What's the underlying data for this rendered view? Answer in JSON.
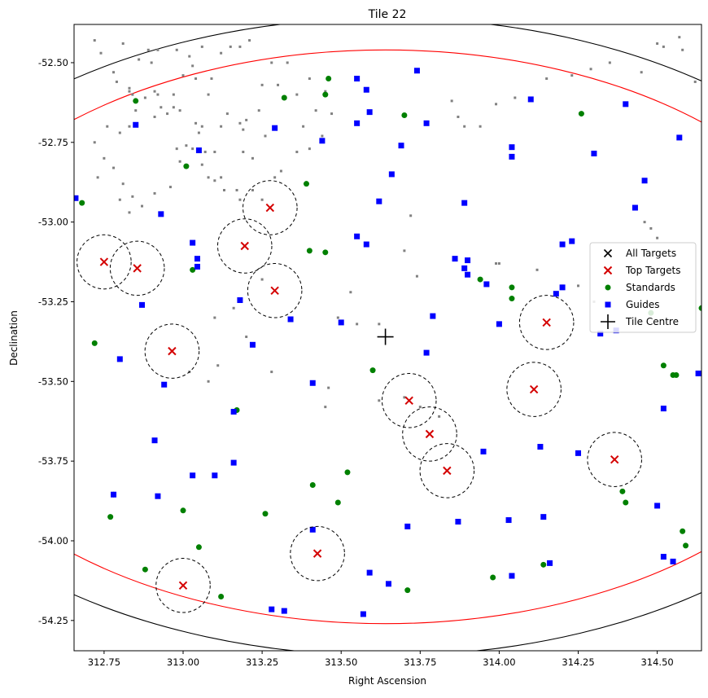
{
  "chart_data": {
    "type": "scatter",
    "title": "Tile 22",
    "xlabel": "Right Ascension",
    "ylabel": "Declination",
    "xlim": [
      312.655,
      314.64
    ],
    "ylim": [
      -54.345,
      -52.38
    ],
    "y_inverted": true,
    "x_ticks": [
      "312.75",
      "313.00",
      "313.25",
      "313.50",
      "313.75",
      "314.00",
      "314.25",
      "314.50"
    ],
    "y_ticks": [
      "-52.50",
      "-52.75",
      "-53.00",
      "-53.25",
      "-53.50",
      "-53.75",
      "-54.00",
      "-54.25"
    ],
    "legend_position": "center-right",
    "legend": [
      {
        "label": "All Targets",
        "marker": "x",
        "color": "#000000"
      },
      {
        "label": "Top Targets",
        "marker": "x",
        "color": "#d40000"
      },
      {
        "label": "Standards",
        "marker": "circle",
        "color": "#008000"
      },
      {
        "label": "Guides",
        "marker": "square",
        "color": "#0000ff"
      },
      {
        "label": "Tile Centre",
        "marker": "plus",
        "color": "#000000"
      }
    ],
    "tile_centre": {
      "ra": 313.64,
      "dec": -53.36
    },
    "field_circles": [
      {
        "radius_dec": 1.0,
        "color": "#000000"
      },
      {
        "radius_dec": 0.9,
        "color": "#ff0000"
      }
    ],
    "top_target_circle_radius_dec": 0.085,
    "series": [
      {
        "name": "Top Targets",
        "points": [
          [
            312.75,
            -53.125
          ],
          [
            312.855,
            -53.145
          ],
          [
            312.965,
            -53.405
          ],
          [
            313.275,
            -52.955
          ],
          [
            313.195,
            -53.075
          ],
          [
            313.29,
            -53.215
          ],
          [
            313.715,
            -53.56
          ],
          [
            313.78,
            -53.665
          ],
          [
            313.835,
            -53.78
          ],
          [
            314.11,
            -53.525
          ],
          [
            314.15,
            -53.315
          ],
          [
            314.365,
            -53.745
          ],
          [
            313.425,
            -54.04
          ],
          [
            313.0,
            -54.14
          ]
        ]
      },
      {
        "name": "Standards",
        "points": [
          [
            312.68,
            -52.94
          ],
          [
            312.72,
            -53.38
          ],
          [
            312.85,
            -52.62
          ],
          [
            313.01,
            -52.825
          ],
          [
            313.03,
            -53.15
          ],
          [
            313.32,
            -52.61
          ],
          [
            313.39,
            -52.88
          ],
          [
            313.4,
            -53.09
          ],
          [
            313.45,
            -53.095
          ],
          [
            313.45,
            -52.6
          ],
          [
            313.46,
            -52.55
          ],
          [
            313.6,
            -53.465
          ],
          [
            313.7,
            -52.665
          ],
          [
            313.94,
            -53.18
          ],
          [
            314.04,
            -53.205
          ],
          [
            314.04,
            -53.24
          ],
          [
            314.26,
            -52.66
          ],
          [
            314.52,
            -53.45
          ],
          [
            314.55,
            -53.48
          ],
          [
            314.56,
            -53.48
          ],
          [
            314.64,
            -53.27
          ],
          [
            314.48,
            -53.285
          ],
          [
            313.17,
            -53.59
          ],
          [
            312.78,
            -53.855
          ],
          [
            312.77,
            -53.925
          ],
          [
            312.88,
            -54.09
          ],
          [
            313.0,
            -53.905
          ],
          [
            313.05,
            -54.02
          ],
          [
            313.12,
            -54.175
          ],
          [
            313.26,
            -53.915
          ],
          [
            313.41,
            -53.825
          ],
          [
            313.49,
            -53.88
          ],
          [
            313.52,
            -53.785
          ],
          [
            313.71,
            -54.155
          ],
          [
            313.98,
            -54.115
          ],
          [
            314.14,
            -54.075
          ],
          [
            314.39,
            -53.845
          ],
          [
            314.4,
            -53.88
          ],
          [
            314.58,
            -53.97
          ],
          [
            314.59,
            -54.015
          ]
        ]
      },
      {
        "name": "Guides",
        "points": [
          [
            312.66,
            -52.925
          ],
          [
            312.85,
            -52.695
          ],
          [
            312.93,
            -52.975
          ],
          [
            313.05,
            -52.775
          ],
          [
            313.03,
            -53.065
          ],
          [
            313.045,
            -53.115
          ],
          [
            313.045,
            -53.14
          ],
          [
            312.87,
            -53.26
          ],
          [
            312.8,
            -53.43
          ],
          [
            312.94,
            -53.51
          ],
          [
            313.18,
            -53.245
          ],
          [
            313.22,
            -53.385
          ],
          [
            313.29,
            -52.705
          ],
          [
            313.34,
            -53.305
          ],
          [
            313.44,
            -52.745
          ],
          [
            313.5,
            -53.315
          ],
          [
            313.55,
            -52.55
          ],
          [
            313.58,
            -52.585
          ],
          [
            313.59,
            -52.655
          ],
          [
            313.55,
            -52.69
          ],
          [
            313.55,
            -53.045
          ],
          [
            313.58,
            -53.07
          ],
          [
            313.62,
            -52.935
          ],
          [
            313.66,
            -52.85
          ],
          [
            313.69,
            -52.76
          ],
          [
            313.74,
            -52.525
          ],
          [
            313.77,
            -52.69
          ],
          [
            313.89,
            -52.94
          ],
          [
            313.86,
            -53.115
          ],
          [
            313.89,
            -53.145
          ],
          [
            313.9,
            -53.12
          ],
          [
            313.9,
            -53.165
          ],
          [
            313.96,
            -53.195
          ],
          [
            314.0,
            -53.32
          ],
          [
            313.79,
            -53.295
          ],
          [
            313.77,
            -53.41
          ],
          [
            314.04,
            -52.765
          ],
          [
            314.04,
            -52.795
          ],
          [
            314.1,
            -52.615
          ],
          [
            314.18,
            -53.225
          ],
          [
            314.2,
            -53.205
          ],
          [
            314.2,
            -53.07
          ],
          [
            314.23,
            -53.06
          ],
          [
            314.3,
            -52.785
          ],
          [
            314.32,
            -53.35
          ],
          [
            314.37,
            -53.34
          ],
          [
            314.4,
            -52.63
          ],
          [
            314.43,
            -52.955
          ],
          [
            314.46,
            -52.87
          ],
          [
            314.57,
            -52.735
          ],
          [
            314.63,
            -53.475
          ],
          [
            314.52,
            -53.585
          ],
          [
            313.41,
            -53.505
          ],
          [
            313.16,
            -53.595
          ],
          [
            313.16,
            -53.755
          ],
          [
            312.91,
            -53.685
          ],
          [
            312.78,
            -53.855
          ],
          [
            312.92,
            -53.86
          ],
          [
            313.03,
            -53.795
          ],
          [
            313.1,
            -53.795
          ],
          [
            313.41,
            -53.965
          ],
          [
            313.28,
            -54.215
          ],
          [
            313.32,
            -54.22
          ],
          [
            313.59,
            -54.1
          ],
          [
            313.65,
            -54.135
          ],
          [
            313.57,
            -54.23
          ],
          [
            313.71,
            -53.955
          ],
          [
            313.95,
            -53.72
          ],
          [
            313.87,
            -53.94
          ],
          [
            314.03,
            -53.935
          ],
          [
            314.04,
            -54.11
          ],
          [
            314.13,
            -53.705
          ],
          [
            314.14,
            -53.925
          ],
          [
            314.16,
            -54.07
          ],
          [
            314.25,
            -53.725
          ],
          [
            314.5,
            -53.89
          ],
          [
            314.52,
            -54.05
          ],
          [
            314.55,
            -54.065
          ]
        ]
      },
      {
        "name": "All Targets",
        "points": [
          [
            312.72,
            -52.43
          ],
          [
            312.78,
            -52.53
          ],
          [
            312.79,
            -52.56
          ],
          [
            312.83,
            -52.58
          ],
          [
            312.83,
            -52.59
          ],
          [
            312.84,
            -52.6
          ],
          [
            312.88,
            -52.61
          ],
          [
            312.91,
            -52.59
          ],
          [
            312.92,
            -52.6
          ],
          [
            312.93,
            -52.64
          ],
          [
            312.95,
            -52.66
          ],
          [
            312.91,
            -52.67
          ],
          [
            312.97,
            -52.6
          ],
          [
            312.97,
            -52.64
          ],
          [
            312.99,
            -52.65
          ],
          [
            312.85,
            -52.65
          ],
          [
            312.83,
            -52.7
          ],
          [
            312.76,
            -52.7
          ],
          [
            312.8,
            -52.72
          ],
          [
            312.72,
            -52.75
          ],
          [
            312.75,
            -52.8
          ],
          [
            312.73,
            -52.86
          ],
          [
            312.78,
            -52.83
          ],
          [
            312.81,
            -52.88
          ],
          [
            312.84,
            -52.92
          ],
          [
            312.8,
            -52.93
          ],
          [
            312.83,
            -52.97
          ],
          [
            312.87,
            -52.95
          ],
          [
            312.91,
            -52.91
          ],
          [
            312.96,
            -52.89
          ],
          [
            312.99,
            -52.81
          ],
          [
            312.98,
            -52.77
          ],
          [
            313.01,
            -52.76
          ],
          [
            313.03,
            -52.77
          ],
          [
            313.07,
            -52.78
          ],
          [
            313.1,
            -52.78
          ],
          [
            313.06,
            -52.82
          ],
          [
            313.08,
            -52.86
          ],
          [
            313.1,
            -52.87
          ],
          [
            313.12,
            -52.86
          ],
          [
            313.13,
            -52.9
          ],
          [
            313.17,
            -52.9
          ],
          [
            313.22,
            -52.9
          ],
          [
            313.18,
            -52.93
          ],
          [
            313.25,
            -52.93
          ],
          [
            313.29,
            -52.86
          ],
          [
            313.31,
            -52.84
          ],
          [
            313.22,
            -52.8
          ],
          [
            313.19,
            -52.78
          ],
          [
            313.12,
            -52.7
          ],
          [
            313.14,
            -52.66
          ],
          [
            313.18,
            -52.69
          ],
          [
            313.2,
            -52.68
          ],
          [
            313.24,
            -52.65
          ],
          [
            313.25,
            -52.57
          ],
          [
            313.28,
            -52.5
          ],
          [
            313.3,
            -52.57
          ],
          [
            313.33,
            -52.5
          ],
          [
            313.36,
            -52.6
          ],
          [
            313.4,
            -52.55
          ],
          [
            313.42,
            -52.65
          ],
          [
            313.45,
            -52.59
          ],
          [
            313.38,
            -52.7
          ],
          [
            313.36,
            -52.78
          ],
          [
            313.4,
            -52.77
          ],
          [
            313.44,
            -52.73
          ],
          [
            313.47,
            -52.66
          ],
          [
            313.26,
            -52.73
          ],
          [
            313.19,
            -52.71
          ],
          [
            313.06,
            -52.7
          ],
          [
            313.05,
            -52.72
          ],
          [
            313.04,
            -52.69
          ],
          [
            313.08,
            -52.6
          ],
          [
            313.09,
            -52.55
          ],
          [
            313.04,
            -52.55
          ],
          [
            313.0,
            -52.54
          ],
          [
            313.03,
            -52.51
          ],
          [
            313.12,
            -52.47
          ],
          [
            313.06,
            -52.45
          ],
          [
            313.02,
            -52.48
          ],
          [
            313.15,
            -52.45
          ],
          [
            313.18,
            -52.45
          ],
          [
            313.21,
            -52.43
          ],
          [
            312.98,
            -52.46
          ],
          [
            312.92,
            -52.46
          ],
          [
            312.89,
            -52.46
          ],
          [
            312.86,
            -52.49
          ],
          [
            312.9,
            -52.5
          ],
          [
            312.81,
            -52.44
          ],
          [
            312.74,
            -52.47
          ],
          [
            313.72,
            -52.98
          ],
          [
            313.7,
            -53.09
          ],
          [
            313.74,
            -53.17
          ],
          [
            313.62,
            -53.32
          ],
          [
            313.55,
            -53.32
          ],
          [
            313.53,
            -53.22
          ],
          [
            313.49,
            -53.3
          ],
          [
            313.85,
            -52.62
          ],
          [
            313.87,
            -52.67
          ],
          [
            313.89,
            -52.7
          ],
          [
            313.94,
            -52.7
          ],
          [
            313.99,
            -52.63
          ],
          [
            314.05,
            -52.61
          ],
          [
            314.15,
            -52.55
          ],
          [
            314.23,
            -52.54
          ],
          [
            314.29,
            -52.52
          ],
          [
            314.35,
            -52.5
          ],
          [
            314.45,
            -52.53
          ],
          [
            314.5,
            -52.44
          ],
          [
            314.52,
            -52.45
          ],
          [
            314.57,
            -52.42
          ],
          [
            314.58,
            -52.46
          ],
          [
            314.62,
            -52.56
          ],
          [
            313.99,
            -53.13
          ],
          [
            314.0,
            -53.13
          ],
          [
            314.12,
            -53.15
          ],
          [
            314.2,
            -53.2
          ],
          [
            314.25,
            -53.2
          ],
          [
            314.3,
            -53.25
          ],
          [
            314.46,
            -53.0
          ],
          [
            314.48,
            -53.02
          ],
          [
            314.5,
            -53.05
          ],
          [
            313.11,
            -53.45
          ],
          [
            313.08,
            -53.5
          ],
          [
            313.02,
            -53.47
          ],
          [
            313.25,
            -53.18
          ],
          [
            313.28,
            -53.47
          ],
          [
            313.16,
            -53.27
          ],
          [
            313.62,
            -53.56
          ],
          [
            313.7,
            -53.55
          ],
          [
            313.75,
            -53.58
          ],
          [
            313.81,
            -53.61
          ],
          [
            313.45,
            -53.58
          ],
          [
            313.46,
            -53.52
          ],
          [
            313.1,
            -53.3
          ],
          [
            313.2,
            -53.36
          ]
        ]
      }
    ]
  }
}
